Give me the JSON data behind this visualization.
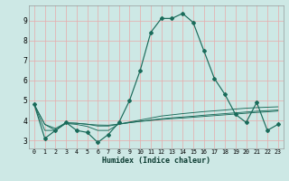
{
  "xlabel": "Humidex (Indice chaleur)",
  "bg_color": "#cde8e5",
  "grid_color": "#e8aaaa",
  "line_color": "#1a6b5a",
  "xlim": [
    -0.5,
    23.5
  ],
  "ylim": [
    2.6,
    9.75
  ],
  "x_ticks": [
    0,
    1,
    2,
    3,
    4,
    5,
    6,
    7,
    8,
    9,
    10,
    11,
    12,
    13,
    14,
    15,
    16,
    17,
    18,
    19,
    20,
    21,
    22,
    23
  ],
  "y_ticks": [
    3,
    4,
    5,
    6,
    7,
    8,
    9
  ],
  "main_series": [
    4.8,
    3.1,
    3.5,
    3.9,
    3.5,
    3.4,
    2.9,
    3.3,
    3.9,
    5.0,
    6.5,
    8.4,
    9.1,
    9.1,
    9.35,
    8.9,
    7.5,
    6.1,
    5.3,
    4.3,
    3.9,
    4.9,
    3.5,
    3.8
  ],
  "flat_series1": [
    4.8,
    3.8,
    3.5,
    3.85,
    3.8,
    3.7,
    3.5,
    3.5,
    3.82,
    3.92,
    4.02,
    4.12,
    4.22,
    4.28,
    4.34,
    4.39,
    4.44,
    4.48,
    4.52,
    4.57,
    4.61,
    4.64,
    4.66,
    4.68
  ],
  "flat_series2": [
    4.8,
    3.8,
    3.6,
    3.88,
    3.86,
    3.81,
    3.77,
    3.76,
    3.82,
    3.89,
    3.96,
    4.02,
    4.08,
    4.13,
    4.17,
    4.21,
    4.26,
    4.3,
    4.34,
    4.38,
    4.42,
    4.46,
    4.49,
    4.52
  ],
  "flat_series3": [
    4.8,
    3.5,
    3.5,
    3.88,
    3.86,
    3.81,
    3.72,
    3.72,
    3.81,
    3.89,
    3.95,
    4.0,
    4.05,
    4.09,
    4.12,
    4.16,
    4.2,
    4.24,
    4.28,
    4.32,
    4.36,
    4.4,
    4.43,
    4.47
  ]
}
